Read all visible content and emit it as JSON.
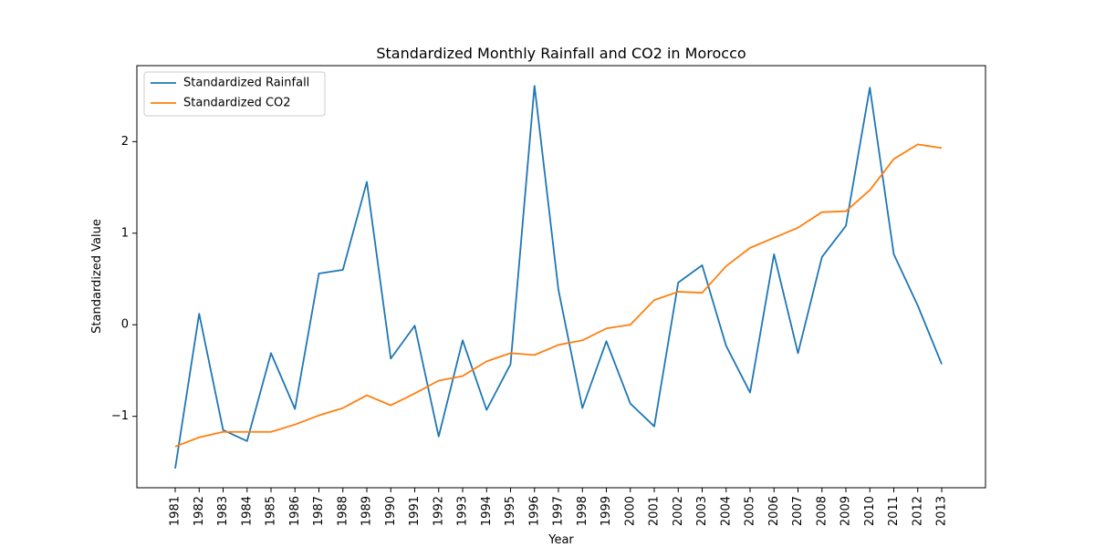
{
  "chart_data": {
    "type": "line",
    "title": "Standardized Monthly Rainfall and CO2 in Morocco",
    "xlabel": "Year",
    "ylabel": "Standardized Value",
    "x": [
      "1981",
      "1982",
      "1983",
      "1984",
      "1985",
      "1986",
      "1987",
      "1988",
      "1989",
      "1990",
      "1991",
      "1992",
      "1993",
      "1994",
      "1995",
      "1996",
      "1997",
      "1998",
      "1999",
      "2000",
      "2001",
      "2002",
      "2003",
      "2004",
      "2005",
      "2006",
      "2007",
      "2008",
      "2009",
      "2010",
      "2011",
      "2012",
      "2013"
    ],
    "yticks": [
      -1,
      0,
      1,
      2
    ],
    "yticklabels": [
      "−1",
      "0",
      "1",
      "2"
    ],
    "ylim": [
      -1.78,
      2.83
    ],
    "legend_position": "upper-left",
    "grid": false,
    "series": [
      {
        "name": "Standardized Rainfall",
        "color": "#1f77b4",
        "values": [
          -1.57,
          0.12,
          -1.15,
          -1.27,
          -0.31,
          -0.92,
          0.56,
          0.6,
          1.56,
          -0.37,
          -0.01,
          -1.22,
          -0.17,
          -0.93,
          -0.43,
          2.61,
          0.38,
          -0.91,
          -0.18,
          -0.86,
          -1.11,
          0.46,
          0.65,
          -0.23,
          -0.74,
          0.77,
          -0.31,
          0.74,
          1.08,
          2.59,
          0.77,
          0.21,
          -0.43
        ]
      },
      {
        "name": "Standardized CO2",
        "color": "#ff7f0e",
        "values": [
          -1.33,
          -1.23,
          -1.17,
          -1.17,
          -1.17,
          -1.09,
          -0.99,
          -0.91,
          -0.77,
          -0.88,
          -0.75,
          -0.61,
          -0.56,
          -0.4,
          -0.31,
          -0.33,
          -0.22,
          -0.17,
          -0.04,
          0.0,
          0.27,
          0.36,
          0.35,
          0.64,
          0.84,
          0.95,
          1.06,
          1.23,
          1.24,
          1.47,
          1.81,
          1.97,
          1.93
        ]
      }
    ]
  }
}
